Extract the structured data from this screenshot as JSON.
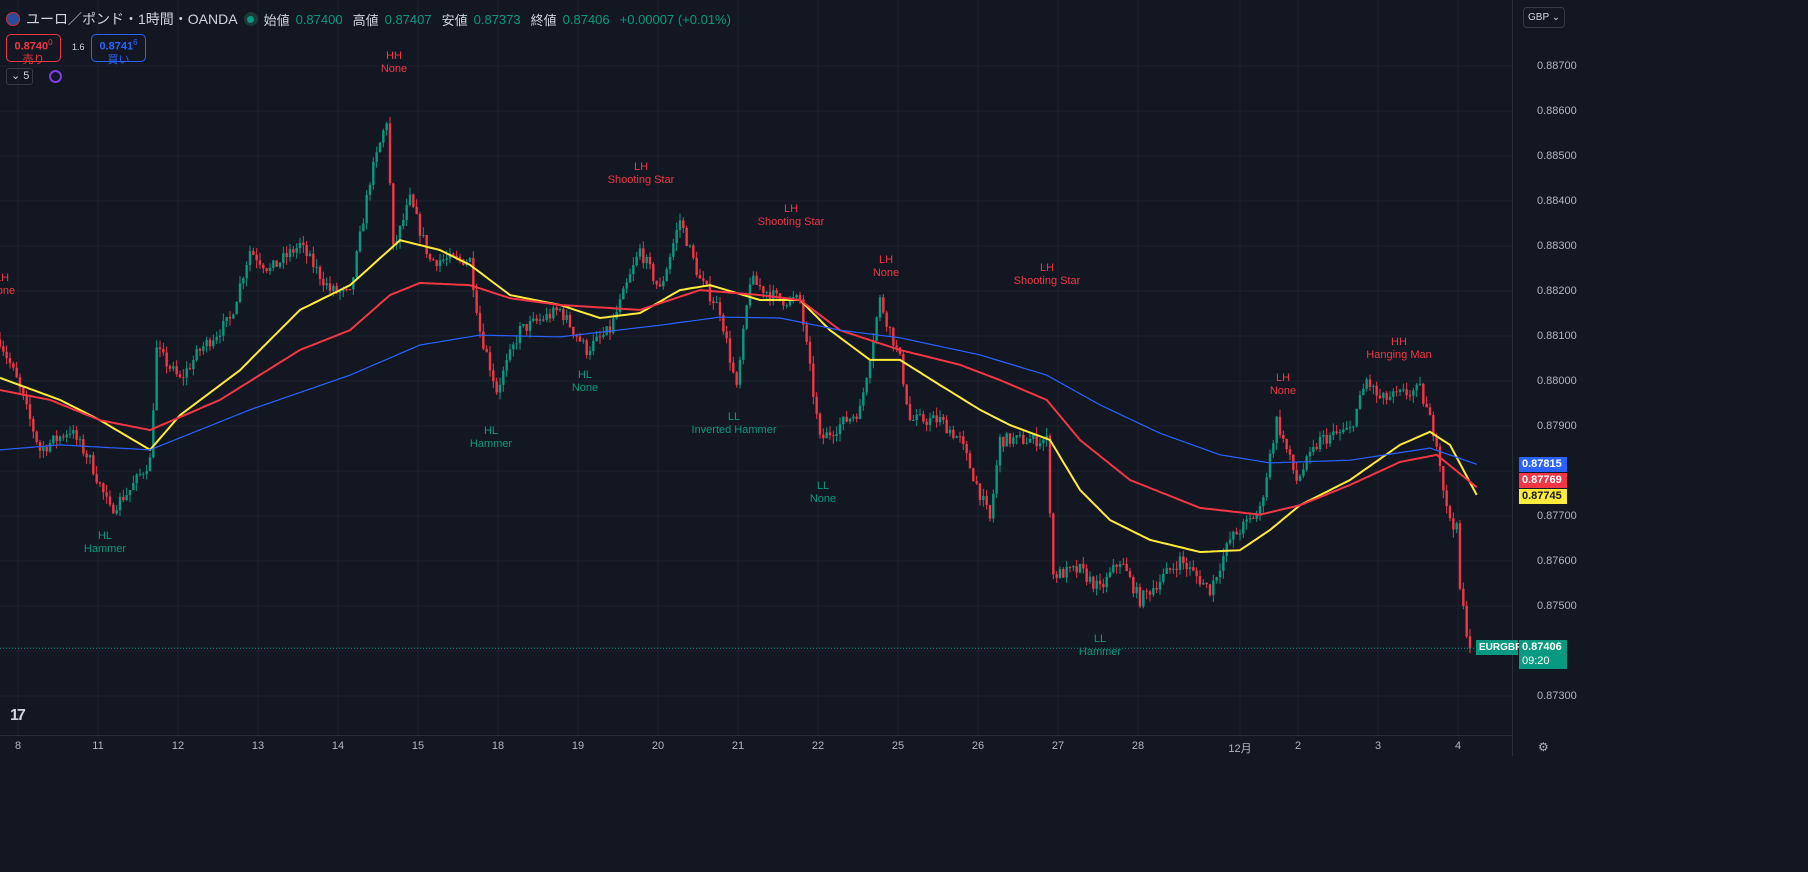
{
  "header": {
    "symbol": "ユーロ／ポンド・1時間・OANDA",
    "open_label": "始値",
    "open": "0.87400",
    "high_label": "高値",
    "high": "0.87407",
    "low_label": "安値",
    "low": "0.87373",
    "close_label": "終値",
    "close": "0.87406",
    "change": "+0.00007 (+0.01%)"
  },
  "trade": {
    "sell_price": "0.8740",
    "sell_sup": "0",
    "sell_label": "売り",
    "spread": "1.6",
    "buy_price": "0.8741",
    "buy_sup": "6",
    "buy_label": "買い"
  },
  "indicators_count": "5",
  "currency": "GBP",
  "colors": {
    "up": "#089981",
    "down": "#f23645",
    "ma_fast": "#ffeb3b",
    "ma_mid": "#f23645",
    "ma_slow": "#2962ff"
  },
  "annotations": [
    {
      "a": "LH",
      "b": "None"
    },
    {
      "a": "HL",
      "b": "Hammer"
    },
    {
      "a": "HH",
      "b": "None"
    },
    {
      "a": "HL",
      "b": "Hammer"
    },
    {
      "a": "HL",
      "b": "None"
    },
    {
      "a": "LH",
      "b": "Shooting Star"
    },
    {
      "a": "LL",
      "b": "Inverted Hammer"
    },
    {
      "a": "LH",
      "b": "Shooting Star"
    },
    {
      "a": "LL",
      "b": "None"
    },
    {
      "a": "LH",
      "b": "None"
    },
    {
      "a": "LH",
      "b": "Shooting Star"
    },
    {
      "a": "LL",
      "b": "Hammer"
    },
    {
      "a": "LH",
      "b": "None"
    },
    {
      "a": "HH",
      "b": "Hanging Man"
    }
  ],
  "price_axis": [
    "0.88700",
    "0.88600",
    "0.88500",
    "0.88400",
    "0.88300",
    "0.88200",
    "0.88100",
    "0.88000",
    "0.87900",
    "0.87700",
    "0.87600",
    "0.87500",
    "0.87300"
  ],
  "badges": {
    "slow": "0.87815",
    "mid": "0.87769",
    "fast": "0.87745",
    "symbol": "EURGBP",
    "last": "0.87406",
    "countdown": "09:20"
  },
  "time_axis": [
    "8",
    "11",
    "12",
    "13",
    "14",
    "15",
    "18",
    "19",
    "20",
    "21",
    "22",
    "25",
    "26",
    "27",
    "28",
    "12月",
    "2",
    "3",
    "4"
  ],
  "chart_data": {
    "type": "candlestick",
    "ylim": [
      0.8723,
      0.8876
    ],
    "price_path": [
      [
        0,
        0.88092
      ],
      [
        5,
        0.88002
      ],
      [
        12,
        0.87847
      ],
      [
        21,
        0.87891
      ],
      [
        27,
        0.87824
      ],
      [
        33,
        0.87713
      ],
      [
        39,
        0.87758
      ],
      [
        45,
        0.87824
      ],
      [
        47,
        0.88069
      ],
      [
        54,
        0.88002
      ],
      [
        60,
        0.88069
      ],
      [
        69,
        0.88136
      ],
      [
        75,
        0.88291
      ],
      [
        81,
        0.88247
      ],
      [
        90,
        0.88302
      ],
      [
        99,
        0.88202
      ],
      [
        105,
        0.88191
      ],
      [
        111,
        0.88447
      ],
      [
        116,
        0.8858
      ],
      [
        118,
        0.88291
      ],
      [
        123,
        0.88402
      ],
      [
        129,
        0.88269
      ],
      [
        141,
        0.88269
      ],
      [
        144,
        0.88113
      ],
      [
        149,
        0.8798
      ],
      [
        156,
        0.88113
      ],
      [
        168,
        0.88158
      ],
      [
        176,
        0.88069
      ],
      [
        183,
        0.88113
      ],
      [
        192,
        0.88291
      ],
      [
        198,
        0.88202
      ],
      [
        204,
        0.88358
      ],
      [
        210,
        0.88224
      ],
      [
        216,
        0.88158
      ],
      [
        221,
        0.8798
      ],
      [
        225,
        0.88224
      ],
      [
        234,
        0.8818
      ],
      [
        240,
        0.8818
      ],
      [
        246,
        0.87869
      ],
      [
        258,
        0.87936
      ],
      [
        264,
        0.8818
      ],
      [
        270,
        0.88047
      ],
      [
        273,
        0.87913
      ],
      [
        282,
        0.87913
      ],
      [
        288,
        0.87869
      ],
      [
        297,
        0.87691
      ],
      [
        300,
        0.87869
      ],
      [
        314,
        0.87869
      ],
      [
        316,
        0.87569
      ],
      [
        324,
        0.8758
      ],
      [
        330,
        0.87536
      ],
      [
        336,
        0.87602
      ],
      [
        342,
        0.87513
      ],
      [
        354,
        0.87602
      ],
      [
        363,
        0.87536
      ],
      [
        369,
        0.87647
      ],
      [
        378,
        0.87713
      ],
      [
        383,
        0.87913
      ],
      [
        389,
        0.8778
      ],
      [
        396,
        0.87869
      ],
      [
        405,
        0.87891
      ],
      [
        410,
        0.88002
      ],
      [
        414,
        0.87958
      ],
      [
        426,
        0.8798
      ],
      [
        431,
        0.87869
      ],
      [
        434,
        0.87713
      ],
      [
        437,
        0.87669
      ],
      [
        438,
        0.87536
      ],
      [
        441,
        0.87402
      ]
    ],
    "series": [
      {
        "name": "MA fast",
        "color": "#ffeb3b",
        "points": [
          [
            0,
            0.88007
          ],
          [
            18,
            0.87958
          ],
          [
            30,
            0.87913
          ],
          [
            45,
            0.87847
          ],
          [
            54,
            0.87924
          ],
          [
            72,
            0.88024
          ],
          [
            78,
            0.88069
          ],
          [
            90,
            0.88158
          ],
          [
            105,
            0.88213
          ],
          [
            120,
            0.88313
          ],
          [
            132,
            0.88291
          ],
          [
            141,
            0.88258
          ],
          [
            153,
            0.88191
          ],
          [
            168,
            0.88169
          ],
          [
            180,
            0.8814
          ],
          [
            192,
            0.88151
          ],
          [
            204,
            0.88202
          ],
          [
            213,
            0.88213
          ],
          [
            228,
            0.8818
          ],
          [
            240,
            0.8818
          ],
          [
            249,
            0.88113
          ],
          [
            261,
            0.88047
          ],
          [
            270,
            0.88047
          ],
          [
            282,
            0.87991
          ],
          [
            294,
            0.87936
          ],
          [
            303,
            0.87902
          ],
          [
            315,
            0.87869
          ],
          [
            324,
            0.87758
          ],
          [
            333,
            0.87691
          ],
          [
            345,
            0.87647
          ],
          [
            360,
            0.8762
          ],
          [
            372,
            0.87624
          ],
          [
            381,
            0.87669
          ],
          [
            390,
            0.87724
          ],
          [
            405,
            0.8778
          ],
          [
            420,
            0.87858
          ],
          [
            429,
            0.87887
          ],
          [
            435,
            0.87858
          ],
          [
            443,
            0.87747
          ]
        ]
      },
      {
        "name": "MA mid",
        "color": "#f23645",
        "points": [
          [
            0,
            0.8798
          ],
          [
            15,
            0.87958
          ],
          [
            30,
            0.87913
          ],
          [
            45,
            0.87891
          ],
          [
            66,
            0.87958
          ],
          [
            90,
            0.88069
          ],
          [
            105,
            0.88113
          ],
          [
            117,
            0.88191
          ],
          [
            126,
            0.88218
          ],
          [
            141,
            0.88213
          ],
          [
            153,
            0.88184
          ],
          [
            168,
            0.88169
          ],
          [
            192,
            0.88158
          ],
          [
            210,
            0.88202
          ],
          [
            228,
            0.88191
          ],
          [
            240,
            0.8818
          ],
          [
            252,
            0.88113
          ],
          [
            270,
            0.88069
          ],
          [
            288,
            0.88036
          ],
          [
            300,
            0.88002
          ],
          [
            314,
            0.87958
          ],
          [
            324,
            0.87869
          ],
          [
            339,
            0.8778
          ],
          [
            360,
            0.87718
          ],
          [
            378,
            0.87703
          ],
          [
            390,
            0.87724
          ],
          [
            405,
            0.87769
          ],
          [
            420,
            0.8782
          ],
          [
            431,
            0.87836
          ],
          [
            443,
            0.87764
          ]
        ]
      },
      {
        "name": "MA slow",
        "color": "#2962ff",
        "points": [
          [
            0,
            0.87847
          ],
          [
            18,
            0.87858
          ],
          [
            45,
            0.87847
          ],
          [
            75,
            0.87936
          ],
          [
            105,
            0.88013
          ],
          [
            126,
            0.8808
          ],
          [
            144,
            0.88102
          ],
          [
            168,
            0.88098
          ],
          [
            198,
            0.88124
          ],
          [
            216,
            0.88142
          ],
          [
            234,
            0.8814
          ],
          [
            252,
            0.88113
          ],
          [
            270,
            0.88096
          ],
          [
            294,
            0.88058
          ],
          [
            314,
            0.88013
          ],
          [
            330,
            0.87947
          ],
          [
            348,
            0.87884
          ],
          [
            366,
            0.87836
          ],
          [
            381,
            0.87818
          ],
          [
            405,
            0.87824
          ],
          [
            429,
            0.87851
          ],
          [
            443,
            0.87815
          ]
        ]
      }
    ],
    "last_price": 0.87406
  }
}
